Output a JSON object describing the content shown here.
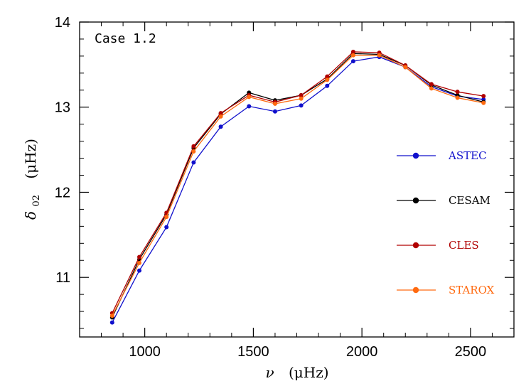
{
  "chart_data": {
    "type": "line",
    "annotation": "Case 1.2",
    "xlabel": {
      "symbol": "ν",
      "unit": "(μHz)"
    },
    "ylabel": {
      "symbol": "δ",
      "subscript": "02",
      "unit": "(μHz)"
    },
    "xlim": [
      700,
      2700
    ],
    "ylim": [
      10.3,
      14.0
    ],
    "xticks": [
      1000,
      1500,
      2000,
      2500
    ],
    "yticks": [
      11,
      12,
      13,
      14
    ],
    "x": [
      850,
      975,
      1100,
      1225,
      1350,
      1480,
      1600,
      1720,
      1840,
      1960,
      2080,
      2200,
      2320,
      2440,
      2560
    ],
    "series": [
      {
        "name": "ASTEC",
        "color": "#1010cc",
        "values": [
          10.47,
          11.08,
          11.59,
          12.35,
          12.77,
          13.01,
          12.95,
          13.02,
          13.25,
          13.54,
          13.59,
          13.47,
          13.24,
          13.13,
          13.09
        ]
      },
      {
        "name": "CESAM",
        "color": "#000000",
        "values": [
          10.53,
          11.21,
          11.74,
          12.52,
          12.92,
          13.17,
          13.08,
          13.14,
          13.33,
          13.63,
          13.62,
          13.49,
          13.26,
          13.14,
          13.06
        ]
      },
      {
        "name": "CLES",
        "color": "#b00000",
        "values": [
          10.58,
          11.24,
          11.76,
          12.54,
          12.93,
          13.14,
          13.06,
          13.14,
          13.36,
          13.65,
          13.64,
          13.49,
          13.27,
          13.18,
          13.13
        ]
      },
      {
        "name": "STAROX",
        "color": "#ff6a10",
        "values": [
          10.55,
          11.17,
          11.71,
          12.48,
          12.89,
          13.12,
          13.04,
          13.1,
          13.32,
          13.61,
          13.61,
          13.47,
          13.22,
          13.11,
          13.05
        ]
      }
    ],
    "legend_position": "right",
    "grid": false
  }
}
